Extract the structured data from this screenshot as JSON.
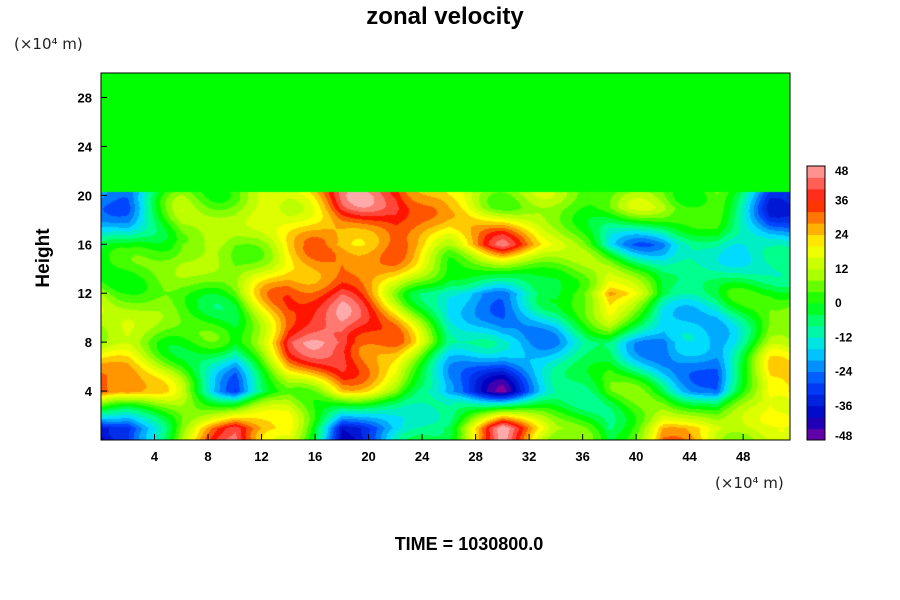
{
  "chart_data": {
    "type": "heatmap",
    "title": "zonal velocity",
    "ylabel": "Height",
    "y_unit_label": "(×10⁴ m)",
    "x_unit_label": "(×10⁴ m)",
    "x_ticks": [
      "4",
      "8",
      "12",
      "16",
      "20",
      "24",
      "28",
      "32",
      "36",
      "40",
      "44",
      "48"
    ],
    "y_ticks": [
      "4",
      "8",
      "12",
      "16",
      "20",
      "24",
      "28"
    ],
    "xlim": [
      0,
      51.5
    ],
    "ylim": [
      0,
      30
    ],
    "colorbar_ticks": [
      "48",
      "36",
      "24",
      "12",
      "0",
      "-12",
      "-24",
      "-36",
      "-48"
    ],
    "colorbar_range": [
      -48,
      48
    ],
    "field": {
      "description": "zonal velocity field; near zero above height 20",
      "nx": 13,
      "ny": 6,
      "x_centers": [
        2,
        6,
        10,
        14,
        18,
        22,
        26,
        30,
        34,
        38,
        42,
        46,
        50
      ],
      "y_centers": [
        1,
        4,
        8,
        12,
        16,
        19
      ],
      "values": [
        [
          -40,
          12,
          44,
          20,
          -40,
          -20,
          4,
          48,
          10,
          -10,
          30,
          20,
          10
        ],
        [
          36,
          6,
          -30,
          8,
          24,
          10,
          -30,
          -40,
          -10,
          6,
          -8,
          -28,
          30
        ],
        [
          12,
          4,
          -8,
          40,
          48,
          30,
          -6,
          -20,
          -16,
          -6,
          -28,
          -20,
          10
        ],
        [
          10,
          2,
          6,
          30,
          40,
          16,
          -20,
          -24,
          -8,
          34,
          -2,
          -10,
          4
        ],
        [
          -8,
          14,
          6,
          20,
          24,
          30,
          20,
          38,
          18,
          -16,
          -20,
          -6,
          -20
        ],
        [
          -24,
          6,
          10,
          16,
          38,
          40,
          20,
          12,
          6,
          4,
          10,
          6,
          -30
        ]
      ]
    },
    "annotation": "TIME = 1030800.0"
  }
}
